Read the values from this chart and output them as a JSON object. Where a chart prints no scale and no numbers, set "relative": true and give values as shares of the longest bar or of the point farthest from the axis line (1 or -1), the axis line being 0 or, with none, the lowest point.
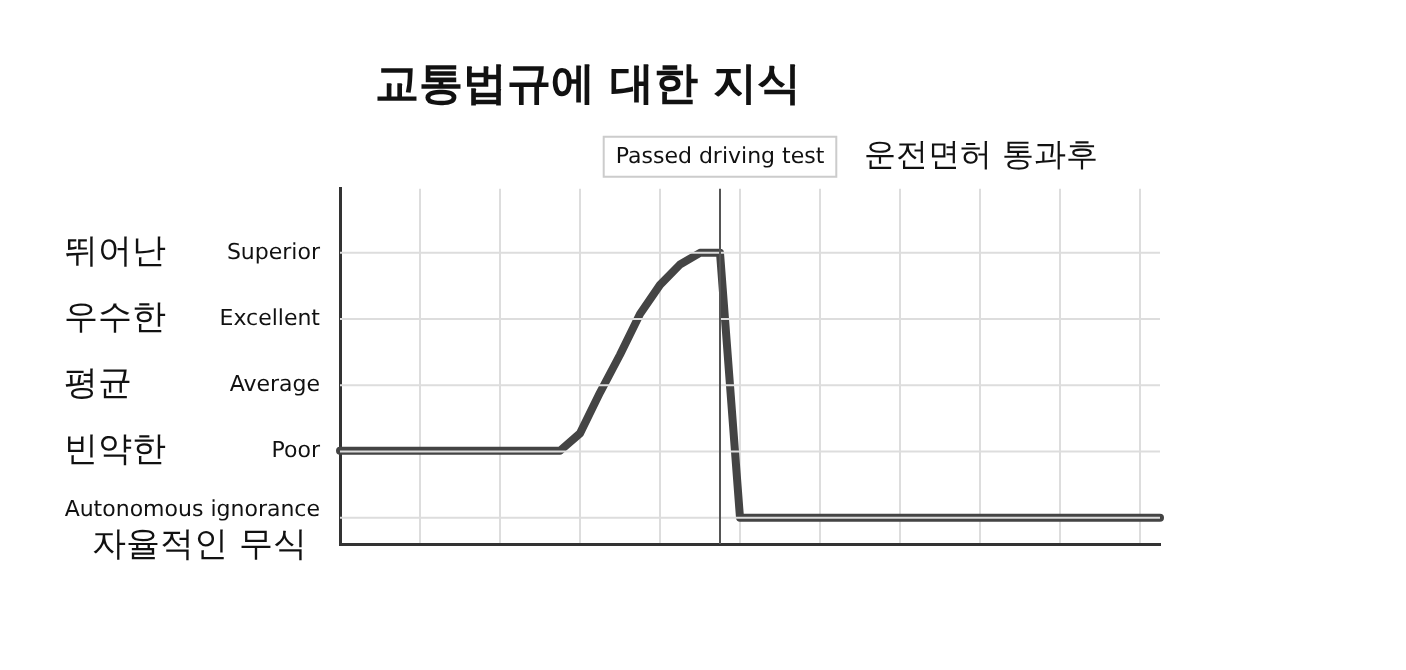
{
  "chart_data": {
    "type": "line",
    "title": "교통법규에 대한 지식",
    "relative": true,
    "categories": [
      null,
      null,
      null,
      null,
      null,
      null,
      null,
      null,
      null,
      null,
      null,
      null,
      null,
      null,
      null,
      null,
      null,
      null,
      null,
      null,
      null,
      null,
      null,
      null,
      null,
      null,
      null,
      null,
      null,
      null,
      null,
      null,
      null,
      null,
      null,
      null,
      null,
      null,
      null,
      null,
      null,
      null
    ],
    "series": [
      {
        "color": "#444444",
        "values": [
          0.32,
          0.32,
          0.32,
          0.32,
          0.32,
          0.32,
          0.32,
          0.32,
          0.32,
          0.32,
          0.32,
          0.32,
          0.38,
          0.52,
          0.65,
          0.79,
          0.89,
          0.96,
          1,
          1,
          0.09,
          0.09,
          0.09,
          0.09,
          0.09,
          0.09,
          0.09,
          0.09,
          0.09,
          0.09,
          0.09,
          0.09,
          0.09,
          0.09,
          0.09,
          0.09,
          0.09,
          0.09,
          0.09,
          0.09,
          0.09,
          0.09
        ]
      }
    ],
    "annotations": [
      "Passed driving test",
      "운전면허 통과후",
      "뛰어난",
      "Superior",
      "우수한",
      "Excellent",
      "평균",
      "Average",
      "빈약한",
      "Poor",
      "Autonomous ignorance",
      "자율적인 무식"
    ],
    "grid": true,
    "marker": "none",
    "line_style": "solid",
    "legend": false
  }
}
